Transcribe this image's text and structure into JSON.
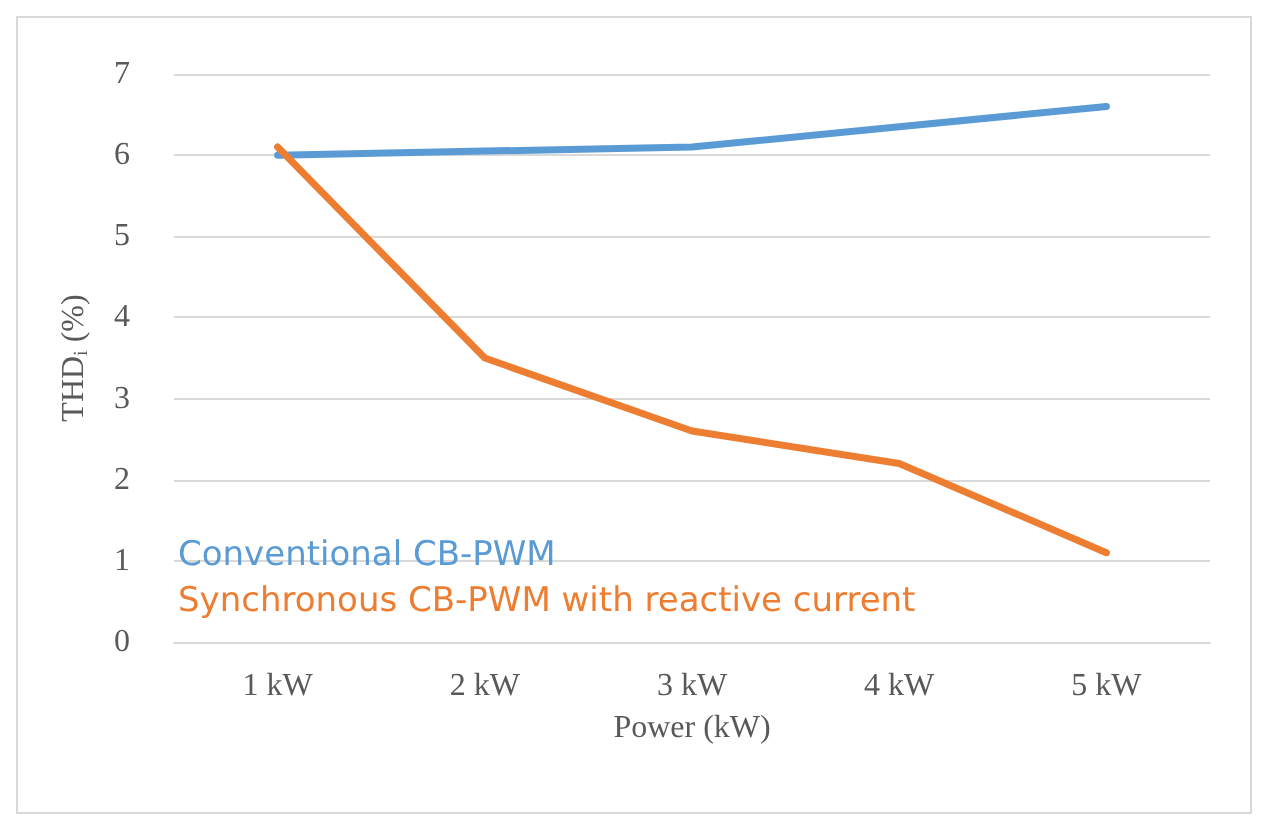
{
  "chart_data": {
    "type": "line",
    "xlabel": "Power (kW)",
    "ylabel": "THD$_{i}$ (%)",
    "categories": [
      "1 kW",
      "2 kW",
      "3 kW",
      "4 kW",
      "5 kW"
    ],
    "series": [
      {
        "name": "Conventional CB-PWM",
        "color": "#5b9bd5",
        "values": [
          6.0,
          6.05,
          6.1,
          6.35,
          6.6
        ]
      },
      {
        "name": "Synchronous CB-PWM with reactive current",
        "color": "#ed7d31",
        "values": [
          6.1,
          3.5,
          2.6,
          2.2,
          1.1
        ]
      }
    ],
    "ylim": [
      0,
      7
    ],
    "yticks": [
      0,
      1,
      2,
      3,
      4,
      5,
      6,
      7
    ],
    "grid": "y",
    "legend": "bottom left",
    "marker": "none",
    "line_style": "solid"
  }
}
